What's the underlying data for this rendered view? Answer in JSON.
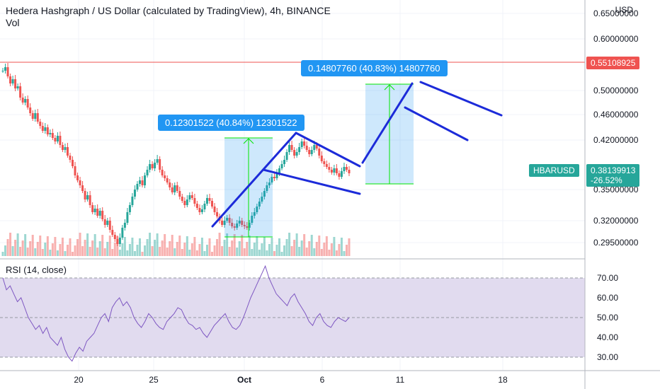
{
  "header": {
    "title": "Hedera Hashgraph / US Dollar (calculated by TradingView), 4h, BINANCE",
    "vol_label": "Vol",
    "currency": "USD"
  },
  "price_axis": {
    "ticks": [
      "0.65000000",
      "0.60000000",
      "0.50000000",
      "0.46000000",
      "0.42000000",
      "0.35000000",
      "0.32000000",
      "0.29500000"
    ]
  },
  "time_axis": {
    "ticks": [
      "20",
      "25",
      "Oct",
      "6",
      "11",
      "18"
    ]
  },
  "hline_tag": {
    "label": "0.55108925",
    "color": "#ef5350"
  },
  "symbol_tag": {
    "symbol": "HBARUSD",
    "price": "0.38139913",
    "change": "-26.52%",
    "color": "#26a69a"
  },
  "measure_1": {
    "label": "0.12301522 (40.84%) 12301522"
  },
  "measure_2": {
    "label": "0.14807760 (40.83%) 14807760"
  },
  "rsi": {
    "title": "RSI (14, close)",
    "ticks": [
      "70.00",
      "60.00",
      "50.00",
      "40.00",
      "30.00"
    ]
  },
  "colors": {
    "bull": "#26a69a",
    "bear": "#ef5350",
    "drawing": "#1c2bd9",
    "measure": "#2196f3",
    "measure_arrow": "#00e600",
    "rsi_line": "#7e57c2",
    "rsi_band": "#e1dbef"
  },
  "chart_data": {
    "type": "candlestick",
    "title": "Hedera Hashgraph / US Dollar (calculated by TradingView), 4h, BINANCE",
    "x_ticks": [
      "20",
      "25",
      "Oct",
      "6",
      "11",
      "18"
    ],
    "y_range": [
      0.28,
      0.66
    ],
    "last_price": 0.38139913,
    "change_pct": "-26.52%",
    "horizontal_line": 0.55108925,
    "measurements": [
      {
        "label": "0.12301522 (40.84%) 12301522"
      },
      {
        "label": "0.14807760 (40.83%) 14807760"
      }
    ],
    "rsi": {
      "length": 14,
      "source": "close",
      "upper": 70,
      "middle": 50,
      "lower": 30,
      "range": [
        25,
        80
      ]
    }
  }
}
